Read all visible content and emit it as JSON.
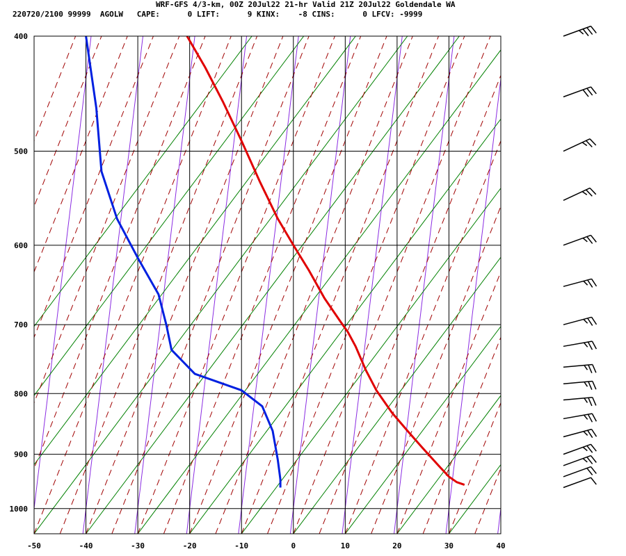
{
  "header": {
    "line1": "WRF-GFS 4/3-km, 00Z 20Jul22 21-hr Valid 21Z 20Jul22 Goldendale WA",
    "line2": "220720/2100 99999  AGOLW   CAPE:      0 LIFT:      9 KINX:    -8 CINS:      0 LFCV: -9999"
  },
  "chart_data": {
    "type": "line",
    "title": "WRF-GFS 4/3-km, 00Z 20Jul22 21-hr Valid 21Z 20Jul22 Goldendale WA",
    "xlabel": "",
    "ylabel": "",
    "xlim": [
      -50,
      40
    ],
    "ylim": [
      1050,
      400
    ],
    "y_scale": "log",
    "x_ticks": [
      -50,
      -40,
      -30,
      -20,
      -10,
      0,
      10,
      20,
      30,
      40
    ],
    "y_ticks": [
      400,
      500,
      600,
      700,
      800,
      900,
      1000
    ],
    "grid": true,
    "series": [
      {
        "color": "#e00000",
        "points": [
          [
            -20.5,
            400
          ],
          [
            -17,
            425
          ],
          [
            -13.5,
            455
          ],
          [
            -10,
            490
          ],
          [
            -6.5,
            530
          ],
          [
            -3,
            570
          ],
          [
            0,
            600
          ],
          [
            3,
            630
          ],
          [
            6,
            665
          ],
          [
            9,
            695
          ],
          [
            10.5,
            710
          ],
          [
            12,
            730
          ],
          [
            14,
            765
          ],
          [
            16,
            795
          ],
          [
            19,
            830
          ],
          [
            22,
            860
          ],
          [
            25,
            890
          ],
          [
            28,
            920
          ],
          [
            30,
            940
          ],
          [
            31.5,
            950
          ],
          [
            33,
            955
          ]
        ]
      },
      {
        "color": "#0020e0",
        "points": [
          [
            -40,
            400
          ],
          [
            -38,
            460
          ],
          [
            -37,
            520
          ],
          [
            -34,
            570
          ],
          [
            -30,
            615
          ],
          [
            -26,
            660
          ],
          [
            -24.5,
            700
          ],
          [
            -23.5,
            735
          ],
          [
            -19,
            770
          ],
          [
            -10,
            795
          ],
          [
            -6,
            820
          ],
          [
            -4,
            860
          ],
          [
            -3,
            910
          ],
          [
            -2.5,
            945
          ],
          [
            -2.5,
            960
          ]
        ]
      }
    ],
    "wind_barbs": [
      {
        "pressure": 400,
        "direction_deg": 250,
        "speed_kt": 35
      },
      {
        "pressure": 450,
        "direction_deg": 250,
        "speed_kt": 30
      },
      {
        "pressure": 500,
        "direction_deg": 245,
        "speed_kt": 25
      },
      {
        "pressure": 550,
        "direction_deg": 245,
        "speed_kt": 25
      },
      {
        "pressure": 600,
        "direction_deg": 250,
        "speed_kt": 25
      },
      {
        "pressure": 650,
        "direction_deg": 255,
        "speed_kt": 25
      },
      {
        "pressure": 700,
        "direction_deg": 255,
        "speed_kt": 25
      },
      {
        "pressure": 730,
        "direction_deg": 260,
        "speed_kt": 25
      },
      {
        "pressure": 760,
        "direction_deg": 265,
        "speed_kt": 25
      },
      {
        "pressure": 785,
        "direction_deg": 265,
        "speed_kt": 25
      },
      {
        "pressure": 810,
        "direction_deg": 265,
        "speed_kt": 25
      },
      {
        "pressure": 840,
        "direction_deg": 260,
        "speed_kt": 25
      },
      {
        "pressure": 870,
        "direction_deg": 255,
        "speed_kt": 25
      },
      {
        "pressure": 900,
        "direction_deg": 250,
        "speed_kt": 25
      },
      {
        "pressure": 920,
        "direction_deg": 250,
        "speed_kt": 25
      },
      {
        "pressure": 940,
        "direction_deg": 250,
        "speed_kt": 20
      },
      {
        "pressure": 960,
        "direction_deg": 250,
        "speed_kt": 10
      }
    ],
    "background_lines": {
      "isotherm_color": "#8a2be2",
      "dry_adiabat_color": "#008000",
      "moist_adiabat_color": "#a00000"
    }
  }
}
